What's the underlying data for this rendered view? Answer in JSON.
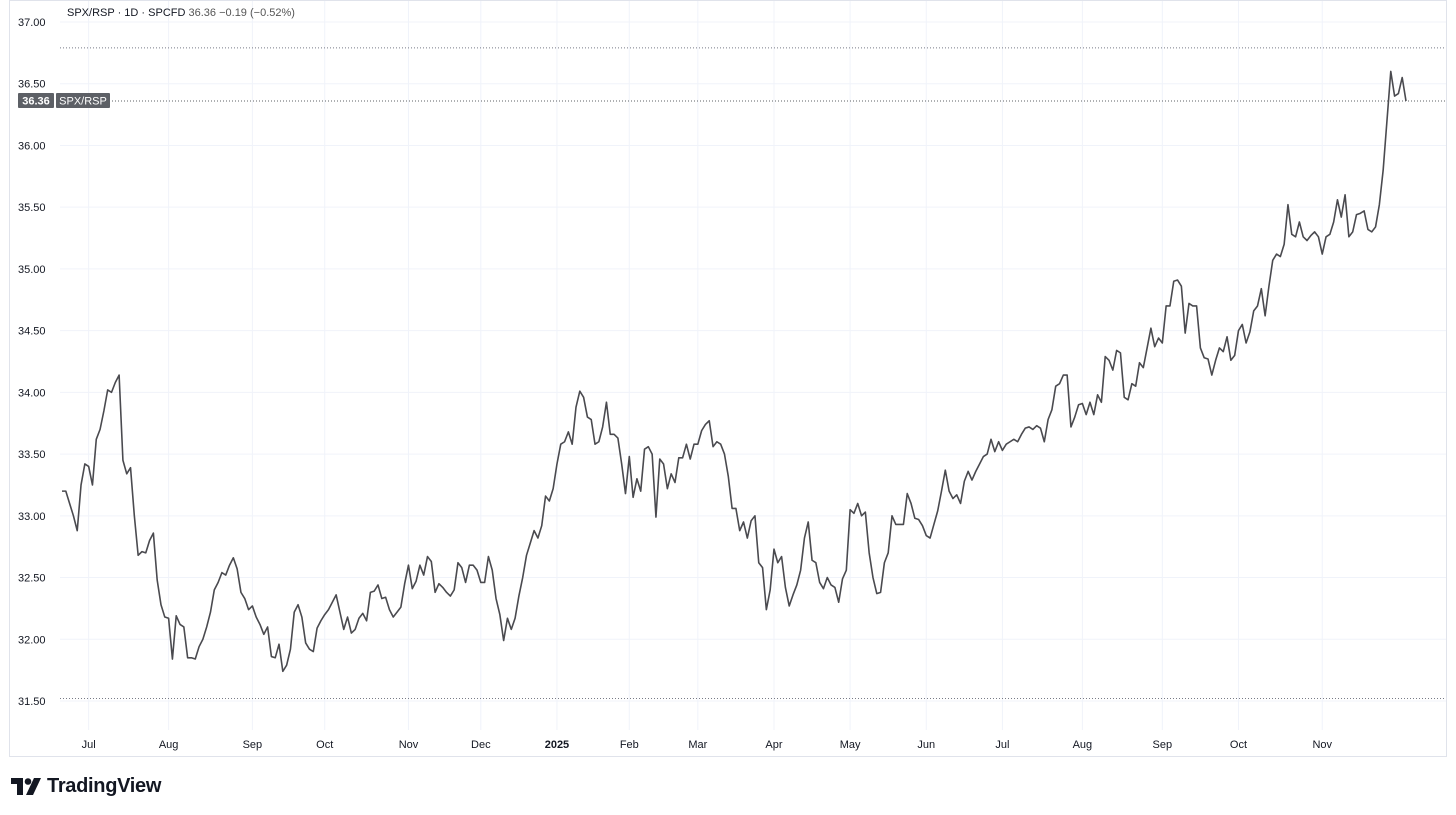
{
  "legend": {
    "symbol": "SPX/RSP",
    "interval": "1D",
    "source": "SPCFD",
    "last": "36.36",
    "change": "−0.19",
    "change_pct": "(−0.52%)"
  },
  "price_tag": {
    "value": "36.36",
    "label": "SPX/RSP",
    "color": "#5d6066"
  },
  "brand": {
    "name": "TradingView",
    "icon": "tradingview-logo-icon"
  },
  "colors": {
    "line": "#4a4a4f",
    "grid": "#f0f3fa",
    "tag": "#5d6066"
  },
  "chart_data": {
    "type": "line",
    "series": [
      {
        "name": "SPX/RSP",
        "values": [
          33.2,
          33.2,
          33.1,
          33.0,
          32.88,
          33.25,
          33.42,
          33.4,
          33.25,
          33.62,
          33.7,
          33.85,
          34.02,
          34.0,
          34.08,
          34.14,
          33.45,
          33.34,
          33.39,
          33.0,
          32.68,
          32.71,
          32.7,
          32.8,
          32.86,
          32.48,
          32.28,
          32.18,
          32.17,
          31.84,
          32.19,
          32.12,
          32.1,
          31.85,
          31.85,
          31.84,
          31.94,
          32.0,
          32.1,
          32.22,
          32.4,
          32.46,
          32.54,
          32.52,
          32.6,
          32.66,
          32.57,
          32.38,
          32.33,
          32.24,
          32.27,
          32.18,
          32.12,
          32.04,
          32.1,
          31.86,
          31.85,
          31.96,
          31.74,
          31.79,
          31.92,
          32.22,
          32.28,
          32.18,
          31.97,
          31.92,
          31.9,
          32.09,
          32.15,
          32.2,
          32.24,
          32.3,
          32.36,
          32.22,
          32.08,
          32.18,
          32.05,
          32.08,
          32.17,
          32.21,
          32.15,
          32.38,
          32.39,
          32.44,
          32.33,
          32.34,
          32.24,
          32.18,
          32.22,
          32.26,
          32.45,
          32.6,
          32.41,
          32.47,
          32.6,
          32.52,
          32.67,
          32.63,
          32.38,
          32.45,
          32.42,
          32.38,
          32.35,
          32.4,
          32.62,
          32.58,
          32.46,
          32.6,
          32.6,
          32.56,
          32.46,
          32.46,
          32.67,
          32.56,
          32.33,
          32.2,
          31.99,
          32.17,
          32.08,
          32.17,
          32.35,
          32.5,
          32.68,
          32.78,
          32.88,
          32.82,
          32.92,
          33.16,
          33.12,
          33.22,
          33.42,
          33.58,
          33.6,
          33.68,
          33.58,
          33.88,
          34.01,
          33.96,
          33.8,
          33.78,
          33.58,
          33.6,
          33.72,
          33.92,
          33.66,
          33.66,
          33.63,
          33.42,
          33.18,
          33.48,
          33.15,
          33.3,
          33.2,
          33.54,
          33.56,
          33.5,
          32.99,
          33.46,
          33.42,
          33.22,
          33.34,
          33.27,
          33.47,
          33.47,
          33.58,
          33.46,
          33.58,
          33.58,
          33.69,
          33.74,
          33.77,
          33.56,
          33.6,
          33.58,
          33.5,
          33.32,
          33.06,
          33.06,
          32.88,
          32.95,
          32.82,
          32.96,
          33.0,
          32.62,
          32.58,
          32.24,
          32.4,
          32.73,
          32.62,
          32.67,
          32.42,
          32.27,
          32.36,
          32.44,
          32.56,
          32.82,
          32.95,
          32.64,
          32.62,
          32.46,
          32.41,
          32.5,
          32.44,
          32.42,
          32.3,
          32.49,
          32.56,
          33.05,
          33.02,
          33.1,
          33.0,
          33.03,
          32.7,
          32.5,
          32.37,
          32.38,
          32.62,
          32.7,
          33.0,
          32.93,
          32.93,
          32.93,
          33.18,
          33.1,
          32.98,
          32.97,
          32.92,
          32.84,
          32.82,
          32.93,
          33.04,
          33.2,
          33.37,
          33.2,
          33.14,
          33.17,
          33.1,
          33.28,
          33.36,
          33.29,
          33.36,
          33.42,
          33.48,
          33.5,
          33.62,
          33.52,
          33.6,
          33.53,
          33.58,
          33.6,
          33.62,
          33.6,
          33.66,
          33.71,
          33.72,
          33.7,
          33.73,
          33.71,
          33.6,
          33.78,
          33.86,
          34.05,
          34.07,
          34.14,
          34.14,
          33.72,
          33.8,
          33.9,
          33.91,
          33.82,
          33.92,
          33.82,
          33.98,
          33.92,
          34.29,
          34.26,
          34.18,
          34.34,
          34.32,
          33.96,
          33.94,
          34.07,
          34.05,
          34.24,
          34.2,
          34.36,
          34.52,
          34.37,
          34.44,
          34.4,
          34.7,
          34.7,
          34.9,
          34.91,
          34.86,
          34.48,
          34.72,
          34.7,
          34.7,
          34.36,
          34.28,
          34.27,
          34.14,
          34.26,
          34.36,
          34.33,
          34.45,
          34.26,
          34.3,
          34.5,
          34.55,
          34.4,
          34.49,
          34.66,
          34.7,
          34.84,
          34.62,
          34.86,
          35.07,
          35.12,
          35.1,
          35.2,
          35.52,
          35.28,
          35.26,
          35.38,
          35.26,
          35.23,
          35.27,
          35.3,
          35.26,
          35.12,
          35.26,
          35.28,
          35.38,
          35.56,
          35.42,
          35.6,
          35.26,
          35.3,
          35.44,
          35.45,
          35.47,
          35.32,
          35.3,
          35.34,
          35.52,
          35.8,
          36.2,
          36.6,
          36.4,
          36.42,
          36.55,
          36.36
        ]
      }
    ],
    "ylim": [
      31.5,
      37.0
    ],
    "yticks": [
      "31.50",
      "32.00",
      "32.50",
      "33.00",
      "33.50",
      "34.00",
      "34.50",
      "35.00",
      "35.50",
      "36.00",
      "36.50",
      "37.00"
    ],
    "xticks": [
      {
        "label": "Jul",
        "idx": 7
      },
      {
        "label": "Aug",
        "idx": 28
      },
      {
        "label": "Sep",
        "idx": 50
      },
      {
        "label": "Oct",
        "idx": 69
      },
      {
        "label": "Nov",
        "idx": 91
      },
      {
        "label": "Dec",
        "idx": 110
      },
      {
        "label": "2025",
        "idx": 130,
        "bold": true
      },
      {
        "label": "Feb",
        "idx": 149
      },
      {
        "label": "Mar",
        "idx": 167
      },
      {
        "label": "Apr",
        "idx": 187
      },
      {
        "label": "May",
        "idx": 207
      },
      {
        "label": "Jun",
        "idx": 227
      },
      {
        "label": "Jul",
        "idx": 247
      },
      {
        "label": "Aug",
        "idx": 268
      },
      {
        "label": "Sep",
        "idx": 289
      },
      {
        "label": "Oct",
        "idx": 309
      },
      {
        "label": "Nov",
        "idx": 331
      }
    ],
    "hlines_dotted": [
      36.79,
      31.52
    ],
    "grid": true
  }
}
